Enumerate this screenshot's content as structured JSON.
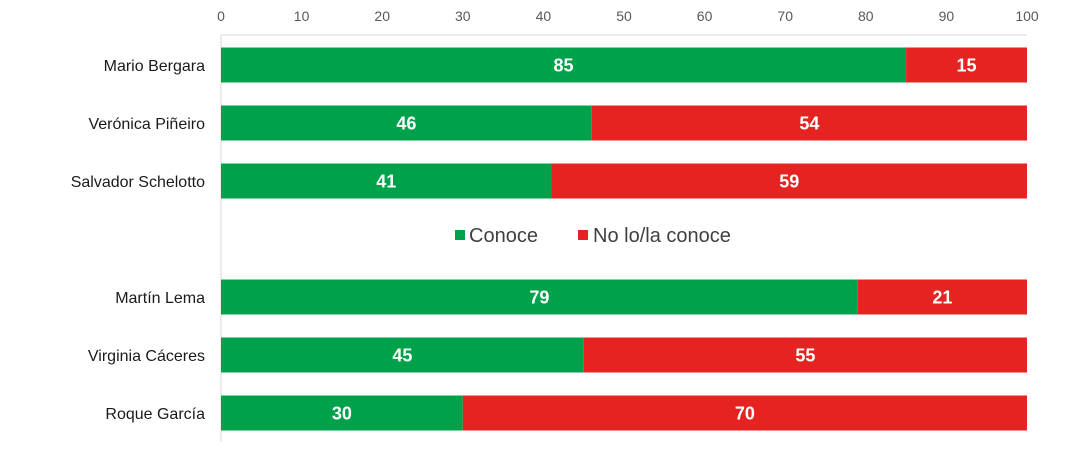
{
  "chart_data": {
    "type": "bar",
    "orientation": "horizontal",
    "stacked": true,
    "xlim": [
      0,
      100
    ],
    "x_ticks": [
      "0",
      "10",
      "20",
      "30",
      "40",
      "50",
      "60",
      "70",
      "80",
      "90",
      "100"
    ],
    "categories": [
      "Mario Bergara",
      "Verónica Piñeiro",
      "Salvador Schelotto",
      "Martín Lema",
      "Virginia Cáceres",
      "Roque García"
    ],
    "series": [
      {
        "name": "Conoce",
        "color": "#00a14b",
        "values": [
          85,
          46,
          41,
          79,
          45,
          30
        ]
      },
      {
        "name": "No lo/la conoce",
        "color": "#e52421",
        "values": [
          15,
          54,
          59,
          21,
          55,
          70
        ]
      }
    ],
    "legend_position": "middle",
    "grid": false
  }
}
